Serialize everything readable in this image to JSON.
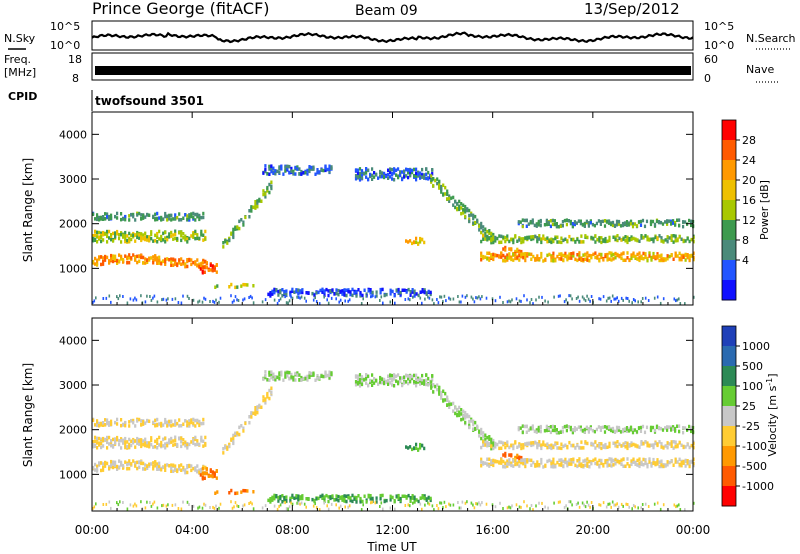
{
  "header": {
    "station": "Prince George (fitACF)",
    "beam": "Beam 09",
    "date": "13/Sep/2012"
  },
  "noise_panel": {
    "left_label": "N.Sky",
    "right_label": "N.Search",
    "left_ticks": [
      "10^5",
      "10^0"
    ],
    "right_ticks": [
      "10^5",
      "10^0"
    ]
  },
  "freq_panel": {
    "left_label_1": "Freq.",
    "left_label_2": "[MHz]",
    "left_ticks": [
      "18",
      "8"
    ],
    "right_label": "Nave",
    "right_ticks": [
      "60",
      "0"
    ]
  },
  "cpid_panel": {
    "label": "CPID",
    "program": "twofsound 3501"
  },
  "chart_data": [
    {
      "type": "heatmap",
      "name": "power",
      "ylabel": "Slant Range [km]",
      "ylim": [
        180,
        4500
      ],
      "yticks": [
        "1000",
        "2000",
        "3000",
        "4000"
      ],
      "colorbar": {
        "label": "Power [dB]",
        "ticks": [
          "28",
          "24",
          "20",
          "16",
          "12",
          "8",
          "4"
        ],
        "colors": [
          "#ff0000",
          "#ff5a00",
          "#ff9900",
          "#eec000",
          "#a8c800",
          "#3d9a4e",
          "#4a8a7a",
          "#2255ff",
          "#1010ff"
        ]
      }
    },
    {
      "type": "heatmap",
      "name": "velocity",
      "ylabel": "Slant Range [km]",
      "ylim": [
        180,
        4500
      ],
      "yticks": [
        "1000",
        "2000",
        "3000",
        "4000"
      ],
      "colorbar": {
        "label": "Velocity [m s",
        "label_sup": "-1",
        "label_end": "]",
        "ticks": [
          "1000",
          "500",
          "100",
          "25",
          "-25",
          "-100",
          "-500",
          "-1000"
        ],
        "colors": [
          "#1f40b8",
          "#2a6ab0",
          "#2c8a55",
          "#66cc33",
          "#c8c8c8",
          "#ffcc33",
          "#ff9900",
          "#ff5a00",
          "#ff0000"
        ]
      }
    }
  ],
  "time_axis": {
    "label": "Time UT",
    "ticks": [
      "00:00",
      "04:00",
      "08:00",
      "12:00",
      "16:00",
      "20:00",
      "00:00"
    ]
  }
}
